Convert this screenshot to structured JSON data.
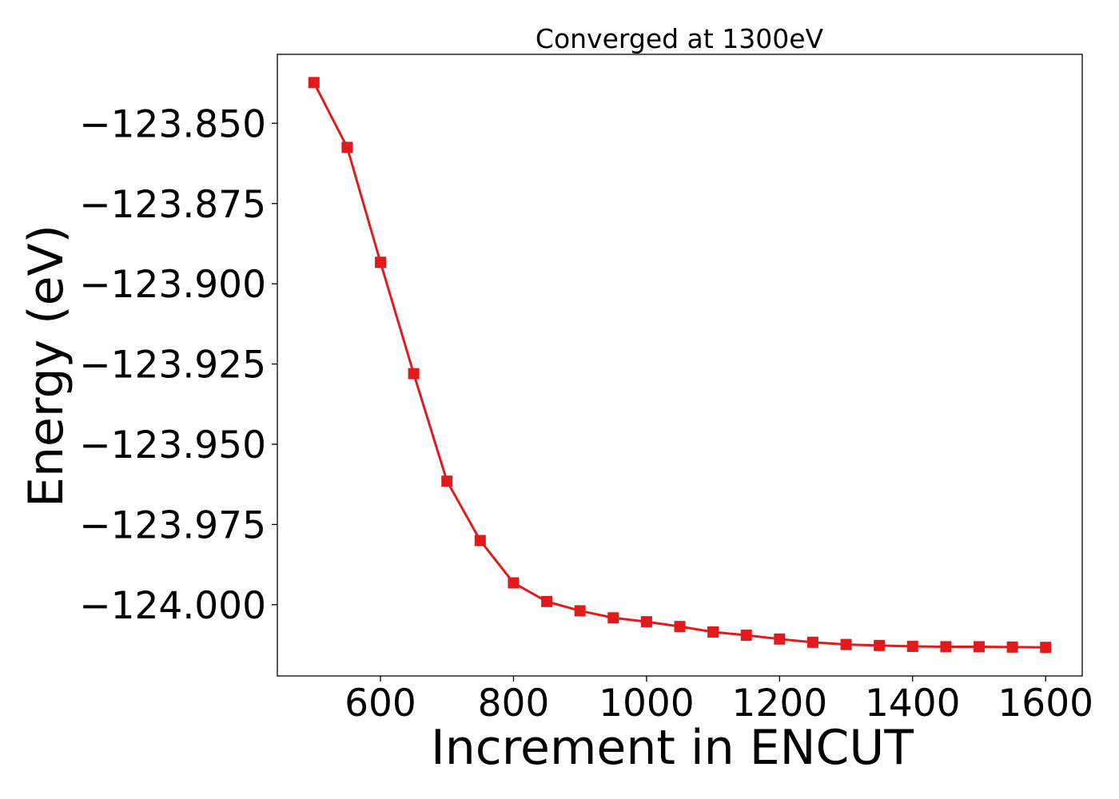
{
  "chart_data": {
    "type": "line",
    "title": "Converged at 1300eV",
    "xlabel": "Increment in ENCUT",
    "ylabel": "Energy (eV)",
    "xlim": [
      445,
      1655
    ],
    "ylim": [
      -124.0222,
      -123.8285
    ],
    "x_ticks": [
      600,
      800,
      1000,
      1200,
      1400,
      1600
    ],
    "x_tick_labels": [
      "600",
      "800",
      "1000",
      "1200",
      "1400",
      "1600"
    ],
    "y_ticks": [
      -123.85,
      -123.875,
      -123.9,
      -123.925,
      -123.95,
      -123.975,
      -124.0
    ],
    "y_tick_labels": [
      "−123.850",
      "−123.875",
      "−123.900",
      "−123.925",
      "−123.950",
      "−123.975",
      "−124.000"
    ],
    "grid": false,
    "legend": "none",
    "series": [
      {
        "color": "#e31a1c",
        "marker": "square",
        "x": [
          500,
          550,
          600,
          650,
          700,
          750,
          800,
          850,
          900,
          950,
          1000,
          1050,
          1100,
          1150,
          1200,
          1250,
          1300,
          1350,
          1400,
          1450,
          1500,
          1550,
          1600
        ],
        "y": [
          -123.8373,
          -123.8575,
          -123.8933,
          -123.928,
          -123.9615,
          -123.98,
          -123.9932,
          -123.999,
          -124.0019,
          -124.0041,
          -124.0053,
          -124.0068,
          -124.0085,
          -124.0095,
          -124.0107,
          -124.0117,
          -124.0124,
          -124.0127,
          -124.013,
          -124.0131,
          -124.0131,
          -124.0132,
          -124.0133
        ]
      }
    ]
  }
}
